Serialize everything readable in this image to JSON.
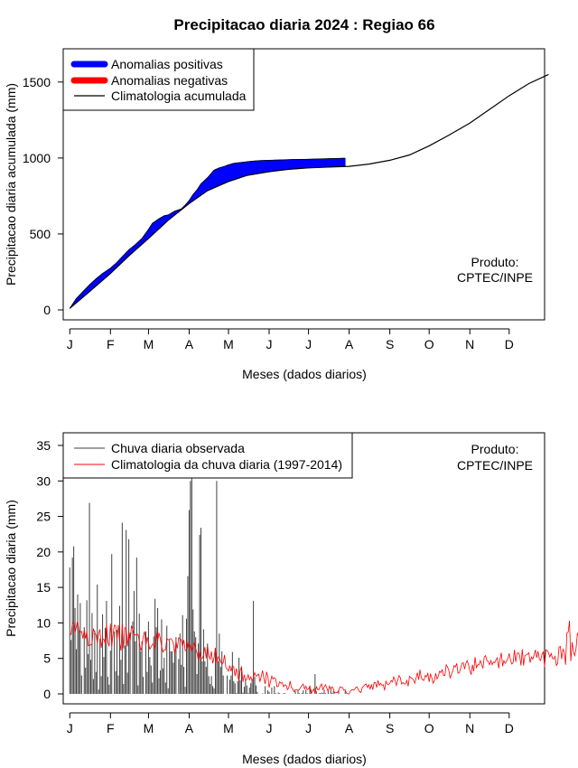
{
  "title": "Precipitacao diaria 2024 : Regiao 66",
  "colors": {
    "positive": "#0000ff",
    "negative": "#ff0000",
    "climatology": "#000000",
    "observed_bars": "#404040",
    "clim_daily": "#ff0000"
  },
  "chart_data": [
    {
      "type": "area",
      "name": "accumulated",
      "ylabel": "Precipitacao diaria acumulada (mm)",
      "xlabel": "Meses (dados diarios)",
      "ylim": [
        0,
        1600
      ],
      "yticks": [
        0,
        500,
        1000,
        1500
      ],
      "xlim": [
        -5,
        362
      ],
      "month_ticks": [
        "J",
        "F",
        "M",
        "A",
        "M",
        "J",
        "J",
        "A",
        "S",
        "O",
        "N",
        "D"
      ],
      "month_days": [
        0,
        31,
        60,
        91,
        121,
        152,
        182,
        213,
        244,
        274,
        305,
        335
      ],
      "legend": [
        "Anomalias positivas",
        "Anomalias negativas",
        "Climatologia acumulada"
      ],
      "climatology": {
        "x": [
          0,
          15,
          31,
          45,
          60,
          75,
          91,
          105,
          121,
          135,
          152,
          166,
          182,
          197,
          213,
          228,
          244,
          259,
          274,
          289,
          305,
          320,
          335,
          350,
          365
        ],
        "y": [
          10,
          120,
          240,
          355,
          470,
          590,
          700,
          785,
          845,
          885,
          910,
          925,
          935,
          940,
          945,
          960,
          985,
          1020,
          1080,
          1150,
          1230,
          1320,
          1410,
          1490,
          1550
        ]
      },
      "observed": {
        "x": [
          0,
          5,
          10,
          15,
          20,
          25,
          31,
          35,
          40,
          45,
          50,
          55,
          60,
          63,
          68,
          72,
          75,
          80,
          85,
          88,
          91,
          94,
          97,
          100,
          105,
          110,
          114,
          118,
          121,
          125,
          130,
          135,
          140,
          145,
          152,
          160,
          170,
          182,
          190,
          200,
          208,
          210
        ],
        "y": [
          10,
          75,
          120,
          165,
          205,
          240,
          275,
          305,
          350,
          395,
          430,
          470,
          530,
          570,
          600,
          620,
          625,
          650,
          665,
          690,
          720,
          760,
          790,
          830,
          870,
          920,
          935,
          945,
          955,
          965,
          970,
          975,
          980,
          983,
          985,
          987,
          990,
          992,
          994,
          996,
          998,
          998
        ]
      },
      "credit": [
        "Produto:",
        "CPTEC/INPE"
      ]
    },
    {
      "type": "bar",
      "name": "daily",
      "ylabel": "Precipitacao diaria (mm)",
      "xlabel": "Meses (dados diarios)",
      "ylim": [
        0,
        35
      ],
      "yticks": [
        0,
        5,
        10,
        15,
        20,
        25,
        30,
        35
      ],
      "xlim": [
        -5,
        362
      ],
      "month_ticks": [
        "J",
        "F",
        "M",
        "A",
        "M",
        "J",
        "J",
        "A",
        "S",
        "O",
        "N",
        "D"
      ],
      "month_days": [
        0,
        31,
        60,
        91,
        121,
        152,
        182,
        213,
        244,
        274,
        305,
        335
      ],
      "legend": [
        "Chuva diaria observada",
        "Climatologia da chuva diaria (1997-2014)"
      ],
      "observed_daily": [
        17.8,
        7.6,
        19.2,
        20.8,
        12.1,
        6.3,
        14.0,
        9.0,
        12.8,
        2.6,
        0.0,
        9.4,
        3.7,
        13.2,
        5.6,
        26.9,
        4.8,
        11.4,
        2.1,
        8.9,
        3.1,
        15.4,
        0.6,
        7.8,
        2.5,
        11.2,
        5.2,
        9.3,
        13.1,
        2.4,
        1.3,
        6.1,
        19.7,
        0.0,
        8.8,
        3.2,
        9.0,
        2.6,
        12.4,
        4.8,
        24.1,
        1.4,
        6.8,
        23.1,
        3.0,
        21.8,
        8.6,
        0.0,
        10.2,
        14.5,
        7.4,
        19.2,
        1.2,
        11.3,
        6.0,
        7.4,
        2.4,
        0.0,
        8.8,
        3.1,
        10.2,
        5.2,
        4.0,
        1.6,
        8.1,
        13.4,
        9.4,
        12.1,
        2.2,
        3.3,
        10.5,
        3.6,
        5.1,
        1.6,
        9.6,
        0.8,
        7.6,
        6.0,
        6.0,
        4.4,
        6.2,
        8.0,
        0.0,
        4.9,
        8.5,
        4.1,
        11.1,
        3.8,
        1.0,
        10.6,
        16.6,
        25.9,
        30.0,
        34.2,
        11.9,
        8.8,
        8.0,
        2.8,
        7.1,
        22.4,
        23.4,
        4.6,
        9.1,
        4.6,
        3.8,
        7.1,
        2.5,
        1.4,
        2.5,
        1.1,
        0.8,
        6.1,
        30.0,
        4.6,
        8.5,
        3.8,
        6.0,
        2.6,
        0.0,
        0.0,
        2.6,
        0.0,
        2.0,
        2.6,
        5.9,
        1.8,
        1.5,
        0.1,
        1.8,
        5.1,
        1.9,
        3.7,
        0.2,
        1.0,
        2.0,
        1.2,
        0.1,
        0.9,
        1.5,
        1.9,
        13.1,
        2.4,
        1.2,
        0.3,
        0.0,
        0.0,
        0.0,
        0.1,
        0.0,
        1.1,
        0.0,
        0.5,
        0.3,
        0.0,
        0.9,
        0.0,
        1.1,
        0.1,
        0.0,
        0.2,
        0.1,
        0.0,
        0.0,
        0.1,
        0.1,
        0.0,
        0.0,
        0.0,
        0.0,
        0.0,
        0.0,
        0.0,
        0.4,
        0.0,
        0.5,
        0.1,
        0.0,
        0.1,
        0.5,
        0.0,
        0.6,
        0.1,
        0.0,
        1.1,
        0.6,
        0.0,
        0.0,
        2.8,
        0.4,
        0.0,
        0.1,
        0.1,
        0.2,
        0.1,
        0.6,
        0.1,
        0.0,
        0.3,
        0.0,
        0.7,
        0.1,
        0.4,
        0.0,
        0.0,
        0.0,
        0.5,
        0.0,
        0.0,
        0.0,
        0.0,
        0.4
      ],
      "climatology_daily": [
        8.3,
        8.4,
        9.9,
        10.1,
        8.6,
        9.5,
        10.3,
        8.8,
        8.7,
        8.8,
        7.8,
        9.0,
        7.8,
        8.8,
        6.8,
        6.8,
        6.9,
        7.1,
        9.2,
        8.7,
        8.3,
        7.2,
        8.5,
        9.1,
        6.5,
        7.8,
        7.7,
        7.1,
        9.8,
        7.4,
        6.7,
        9.9,
        6.7,
        8.4,
        9.7,
        9.6,
        7.6,
        9.7,
        7.3,
        6.1,
        9.9,
        6.4,
        9.3,
        9.3,
        6.7,
        8.7,
        7.4,
        9.6,
        9.1,
        8.4,
        8.3,
        8.4,
        8.4,
        7.4,
        6.1,
        6.7,
        8.1,
        8.8,
        6.8,
        8.0,
        7.2,
        6.3,
        6.6,
        7.0,
        7.1,
        6.3,
        8.8,
        7.4,
        8.6,
        7.8,
        6.7,
        5.9,
        6.2,
        6.2,
        7.8,
        7.6,
        7.7,
        7.8,
        7.6,
        7.1,
        5.6,
        7.4,
        6.4,
        7.9,
        7.8,
        7.6,
        6.7,
        7.6,
        6.1,
        6.2,
        7.4,
        6.4,
        7.0,
        6.0,
        6.7,
        7.3,
        6.4,
        5.8,
        4.7,
        6.1,
        5.0,
        5.0,
        5.5,
        6.6,
        5.0,
        6.8,
        5.4,
        4.9,
        6.0,
        4.3,
        5.1,
        6.5,
        4.3,
        5.2,
        5.2,
        4.6,
        4.2,
        4.4,
        5.5,
        3.7,
        3.5,
        3.2,
        4.0,
        3.2,
        4.0,
        3.8,
        2.5,
        3.6,
        2.5,
        1.8,
        3.4,
        3.8,
        1.7,
        2.7,
        1.9,
        2.1,
        2.7,
        2.0,
        2.4,
        1.8,
        2.3,
        3.0,
        2.5,
        2.6,
        2.8,
        1.7,
        2.5,
        3.3,
        2.2,
        1.4,
        3.1,
        2.5,
        0.9,
        1.7,
        2.5,
        2.1,
        2.3,
        2.1,
        1.0,
        1.1,
        1.7,
        1.5,
        1.6,
        1.0,
        1.3,
        1.2,
        0.6,
        0.9,
        1.8,
        0.9,
        0.7,
        0.3,
        0.6,
        0.6,
        0.5,
        0.6,
        0.9,
        1.2,
        1.4,
        0.7,
        1.1,
        0.6,
        0.7,
        1.1,
        0.1,
        0.3,
        0.7,
        0.1,
        1.0,
        0.6,
        0.6,
        1.1,
        1.4,
        0.6,
        1.0,
        1.3,
        0.8,
        0.3,
        1.1,
        0.7,
        1.0,
        0.7,
        0.1,
        0.2,
        0.2,
        0.5,
        1.0,
        0.9,
        0.9,
        0.5,
        0.6,
        0.1,
        0.0,
        0.0,
        0.4,
        0.6,
        0.6,
        0.6,
        0.9,
        1.0,
        0.6,
        0.3,
        0.2,
        0.9,
        1.1,
        1.3,
        1.4,
        0.9,
        1.3,
        0.7,
        1.3,
        0.6,
        1.6,
        1.6,
        0.9,
        1.9,
        1.2,
        1.5,
        1.2,
        1.3,
        0.5,
        1.8,
        1.4,
        1.3,
        1.5,
        1.9,
        1.7,
        2.4,
        1.9,
        1.2,
        1.9,
        2.6,
        2.3,
        1.4,
        1.6,
        1.4,
        1.4,
        1.9,
        1.1,
        2.5,
        2.3,
        2.2,
        2.0,
        1.5,
        2.2,
        3.0,
        2.0,
        3.4,
        2.3,
        2.0,
        1.9,
        2.6,
        2.4,
        2.9,
        1.7,
        2.8,
        2.3,
        1.5,
        1.9,
        2.9,
        2.1,
        2.5,
        3.2,
        3.0,
        3.4,
        2.6,
        2.6,
        4.1,
        3.8,
        3.3,
        2.2,
        2.8,
        3.2,
        4.0,
        3.8,
        4.3,
        2.9,
        3.0,
        3.6,
        4.3,
        4.4,
        3.5,
        4.3,
        4.7,
        4.1,
        3.3,
        2.7,
        4.1,
        3.2,
        5.2,
        3.7,
        4.1,
        4.1,
        4.7,
        4.1,
        3.6,
        5.2,
        5.4,
        4.7,
        4.6,
        4.1,
        4.7,
        4.1,
        4.5,
        4.4,
        4.8,
        5.1,
        3.6,
        4.9,
        5.8,
        3.9,
        4.7,
        4.3,
        4.6,
        5.0,
        5.7,
        4.8,
        4.2,
        4.4,
        6.2,
        4.5,
        5.7,
        5.8,
        5.4,
        4.0,
        6.3,
        4.0,
        5.4,
        5.5,
        5.6,
        5.8,
        4.4,
        5.2,
        4.9,
        5.5,
        6.2,
        5.1,
        6.0,
        4.9,
        4.7,
        5.6,
        5.9,
        3.8,
        6.2,
        6.1,
        5.8,
        5.2,
        5.7,
        5.0,
        4.9,
        5.3,
        4.0,
        4.3,
        6.6,
        6.7,
        4.9,
        6.3,
        5.9,
        4.1,
        8.6,
        8.7,
        10.3,
        4.6,
        7.3,
        5.9,
        5.4,
        6.4,
        8.5,
        8.1,
        7.6,
        8.7,
        5.7,
        8.3,
        5.9,
        8.0,
        7.2,
        9.0,
        7.3,
        7.7,
        5.6,
        8.7,
        8.3,
        9.1,
        8.7,
        5.7,
        5.7,
        8.6
      ],
      "credit": [
        "Produto:",
        "CPTEC/INPE"
      ]
    }
  ]
}
